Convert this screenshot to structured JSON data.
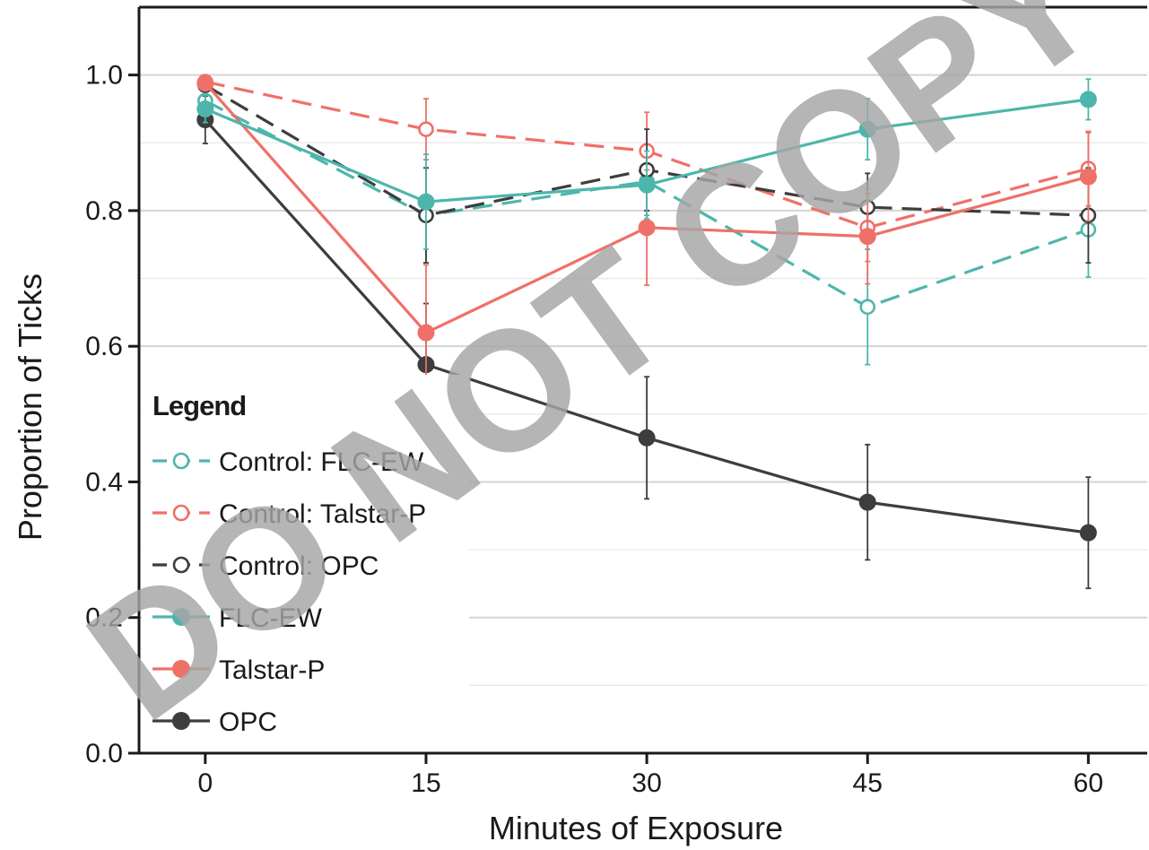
{
  "watermark": "DO NOT COPY",
  "colors": {
    "teal": "#4db6ac",
    "salmon": "#ef7068",
    "dark": "#3d3d3d",
    "black": "#1a1a1a",
    "grid": "#d9d9d9"
  },
  "chart_data": {
    "type": "line",
    "title": "",
    "xlabel": "Minutes of Exposure",
    "ylabel": "Proportion of Ticks",
    "x": [
      0,
      15,
      30,
      45,
      60
    ],
    "x_ticks": [
      "0",
      "15",
      "30",
      "45",
      "60"
    ],
    "y_ticks": [
      "0.0",
      "0.2",
      "0.4",
      "0.6",
      "0.8",
      "1.0"
    ],
    "xlim": [
      -4.5,
      64
    ],
    "ylim": [
      0,
      1.1
    ],
    "grid": true,
    "legend": {
      "title": "Legend",
      "placement": "bottom-left"
    },
    "series": [
      {
        "name": "Control: FLC-EW",
        "color": "#4db6ac",
        "dashed": true,
        "filled": false,
        "values": [
          0.962,
          0.793,
          0.843,
          0.658,
          0.772
        ],
        "errors": [
          0.02,
          0.07,
          0.05,
          0.085,
          0.07
        ]
      },
      {
        "name": "Control: Talstar-P",
        "color": "#ef7068",
        "dashed": true,
        "filled": false,
        "values": [
          0.99,
          0.92,
          0.888,
          0.775,
          0.862
        ],
        "errors": [
          0.01,
          0.045,
          0.057,
          0.05,
          0.055
        ]
      },
      {
        "name": "Control: OPC",
        "color": "#3d3d3d",
        "dashed": true,
        "filled": false,
        "values": [
          0.985,
          0.793,
          0.86,
          0.805,
          0.793
        ],
        "errors": [
          0.01,
          0.07,
          0.06,
          0.05,
          0.07
        ]
      },
      {
        "name": "FLC-EW",
        "color": "#4db6ac",
        "dashed": false,
        "filled": true,
        "values": [
          0.95,
          0.813,
          0.838,
          0.92,
          0.964
        ],
        "errors": [
          0.02,
          0.07,
          0.05,
          0.045,
          0.03
        ]
      },
      {
        "name": "Talstar-P",
        "color": "#ef7068",
        "dashed": false,
        "filled": true,
        "values": [
          0.988,
          0.62,
          0.775,
          0.762,
          0.85
        ],
        "errors": [
          0.01,
          0.1,
          0.085,
          0.07,
          0.065
        ]
      },
      {
        "name": "OPC",
        "color": "#3d3d3d",
        "dashed": false,
        "filled": true,
        "values": [
          0.934,
          0.573,
          0.465,
          0.37,
          0.325
        ],
        "errors": [
          0.035,
          0.09,
          0.09,
          0.085,
          0.082
        ]
      }
    ]
  }
}
